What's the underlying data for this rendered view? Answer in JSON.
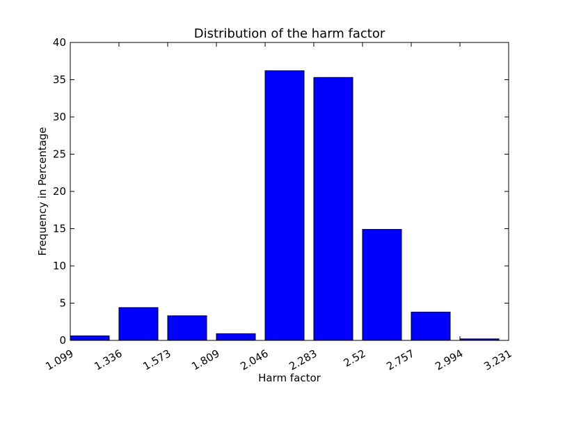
{
  "chart_data": {
    "type": "bar",
    "title": "Distribution of the harm factor",
    "xlabel": "Harm factor",
    "ylabel": "Frequency in Percentage",
    "x_tick_labels": [
      "1.099",
      "1.336",
      "1.573",
      "1.809",
      "2.046",
      "2.283",
      "2.52",
      "2.757",
      "2.994",
      "3.231"
    ],
    "y_tick_labels": [
      "0",
      "5",
      "10",
      "15",
      "20",
      "25",
      "30",
      "35",
      "40"
    ],
    "y_ticks": [
      0,
      5,
      10,
      15,
      20,
      25,
      30,
      35,
      40
    ],
    "ylim": [
      0,
      40
    ],
    "values": [
      0.6,
      4.4,
      3.3,
      0.9,
      36.2,
      35.3,
      14.9,
      3.8,
      0.2
    ],
    "bar_color": "#0000ff",
    "grid": false
  }
}
